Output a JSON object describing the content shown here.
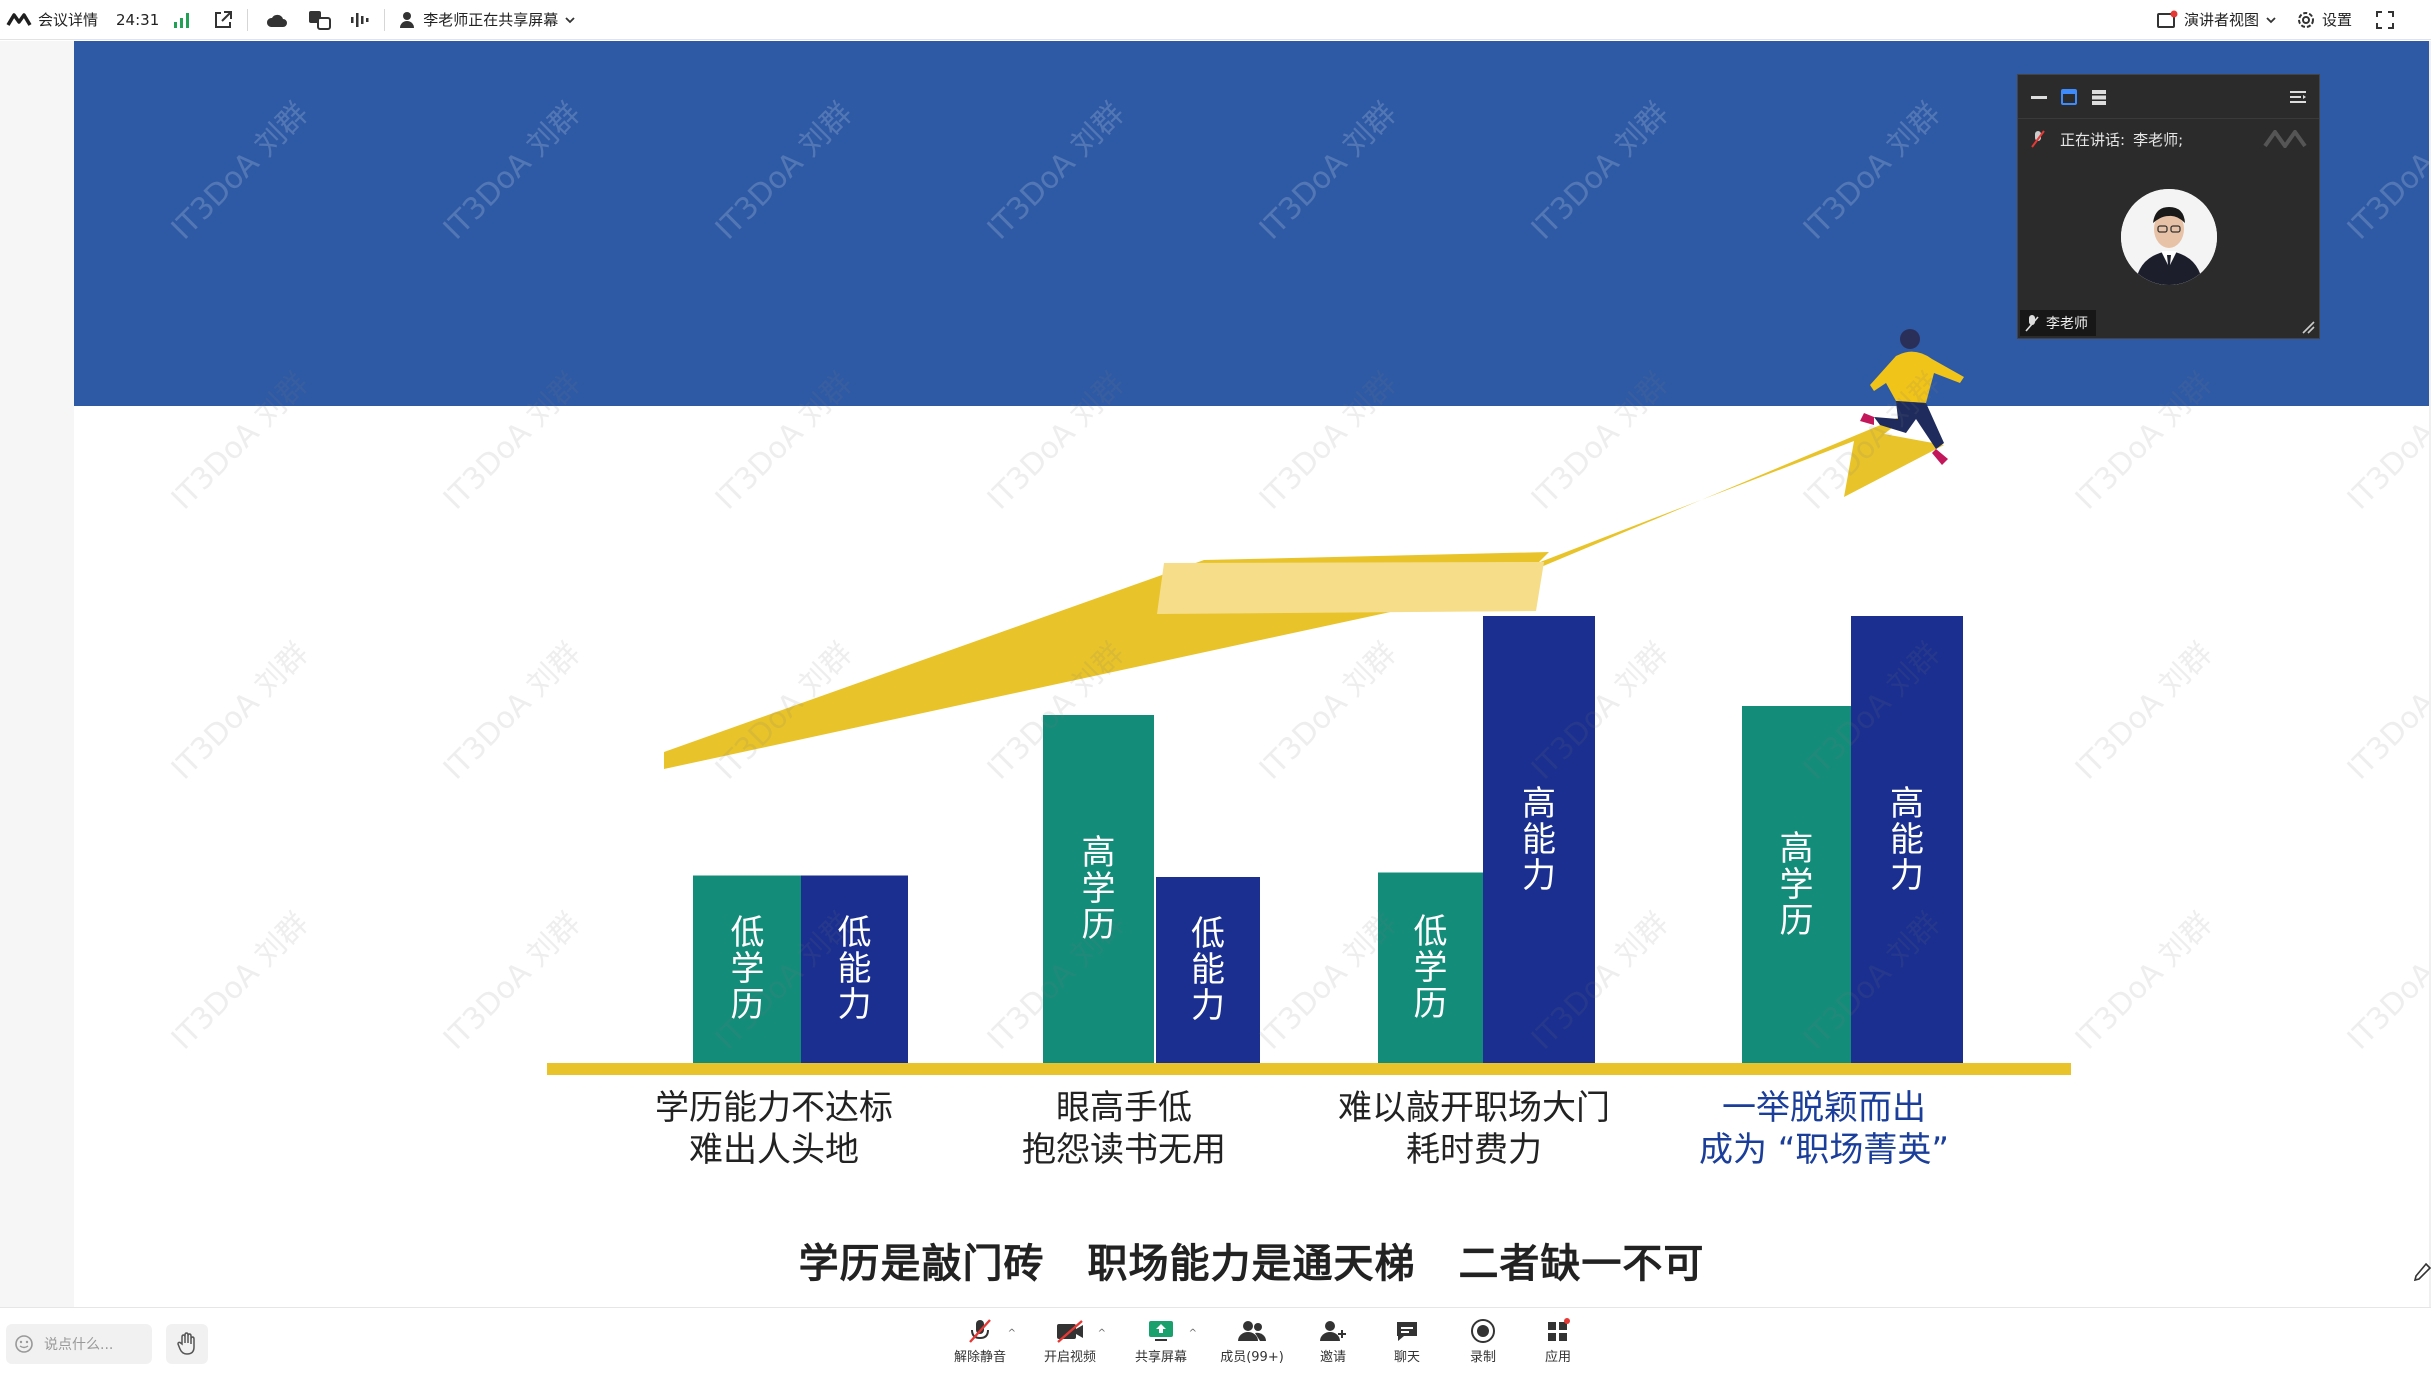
{
  "topbar": {
    "meeting_details": "会议详情",
    "timer": "24:31",
    "sharing_status": "李老师正在共享屏幕",
    "view_mode": "演讲者视图",
    "settings": "设置"
  },
  "slide": {
    "watermark": "IT3DoA 刘群",
    "bars": [
      {
        "label": "低\n学\n历",
        "color": "#148c7a",
        "value": 125
      },
      {
        "label": "低\n能\n力",
        "color": "#1a2f8f",
        "value": 125
      },
      {
        "label": "高\n学\n历",
        "color": "#148c7a",
        "value": 232
      },
      {
        "label": "低\n能\n力",
        "color": "#1a2f8f",
        "value": 124
      },
      {
        "label": "低\n学\n历",
        "color": "#148c7a",
        "value": 127
      },
      {
        "label": "高\n能\n力",
        "color": "#1a2f8f",
        "value": 298
      },
      {
        "label": "高\n学\n历",
        "color": "#148c7a",
        "value": 238
      },
      {
        "label": "高\n能\n力",
        "color": "#1a2f8f",
        "value": 298
      }
    ],
    "group_captions": [
      {
        "line1": "学历能力不达标",
        "line2": "难出人头地",
        "color": "#333333"
      },
      {
        "line1": "眼高手低",
        "line2": "抱怨读书无用",
        "color": "#333333"
      },
      {
        "line1": "难以敲开职场大门",
        "line2": "耗时费力",
        "color": "#222222"
      },
      {
        "line1": "一举脱颖而出",
        "line2": "成为 “职场菁英”",
        "color": "#1a3e9a"
      }
    ],
    "conclusion": [
      "学历是敲门砖",
      "职场能力是通天梯",
      "二者缺一不可"
    ],
    "colors": {
      "banner": "#2e5aa5",
      "teal": "#148c7a",
      "navy": "#1a2f8f",
      "arrow": "#e8c42a",
      "baseline": "#e8c42a"
    }
  },
  "video_tile": {
    "speaking_label": "正在讲话:",
    "speaker": "李老师;",
    "name_tag": "李老师"
  },
  "bottombar": {
    "chat_placeholder": "说点什么...",
    "tools": [
      {
        "label": "解除静音",
        "icon": "mic-muted-icon"
      },
      {
        "label": "开启视频",
        "icon": "camera-off-icon"
      },
      {
        "label": "共享屏幕",
        "icon": "share-screen-icon"
      },
      {
        "label": "成员(99+)",
        "icon": "members-icon"
      },
      {
        "label": "邀请",
        "icon": "invite-icon"
      },
      {
        "label": "聊天",
        "icon": "chat-icon"
      },
      {
        "label": "录制",
        "icon": "record-icon"
      },
      {
        "label": "应用",
        "icon": "apps-icon"
      }
    ]
  }
}
